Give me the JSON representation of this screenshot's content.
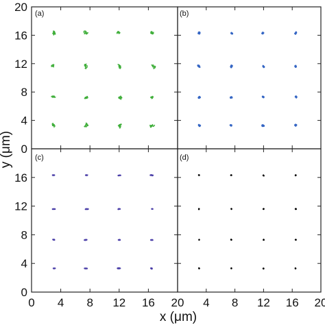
{
  "chart_data": {
    "type": "scatter",
    "description_axes": {
      "xlabel": "x (μm)",
      "ylabel": "y (μm)",
      "xlim": [
        0,
        20
      ],
      "ylim": [
        0,
        20
      ],
      "x_tick_labels": [
        "0",
        "4",
        "8",
        "12",
        "16",
        "20"
      ],
      "y_tick_labels_top": [
        "0",
        "4",
        "8",
        "12",
        "16",
        "20"
      ],
      "y_tick_labels_bottom": [
        "0",
        "4",
        "8",
        "12",
        "16"
      ]
    },
    "grid_x": [
      3,
      7.5,
      12,
      16.5
    ],
    "grid_y": [
      3.3,
      7.3,
      11.6,
      16.3
    ],
    "panels": [
      {
        "tag": "(a)",
        "color": "#3fae3a",
        "spread": 1.2,
        "fill": false
      },
      {
        "tag": "(b)",
        "color": "#3566c4",
        "spread": 0.6,
        "fill": true
      },
      {
        "tag": "(c)",
        "color": "#4b3fa8",
        "spread": 0.35,
        "fill": true
      },
      {
        "tag": "(d)",
        "color": "#000000",
        "spread": 0.2,
        "fill": true
      }
    ]
  },
  "labels": {
    "xlabel": "x (μm)",
    "ylabel": "y (μm)",
    "tag_a": "(a)",
    "tag_b": "(b)",
    "tag_c": "(c)",
    "tag_d": "(d)"
  }
}
